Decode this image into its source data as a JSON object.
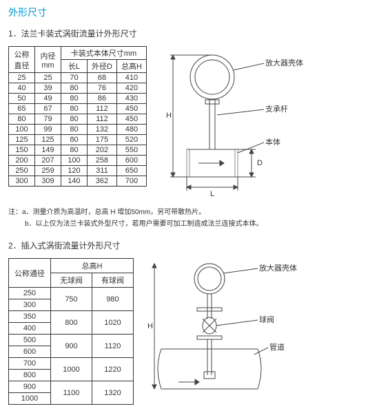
{
  "title_main": "外形尺寸",
  "section1": {
    "title": "1．法兰卡装式涡街流量计外形尺寸",
    "headers": {
      "col1_line1": "公称",
      "col1_line2": "直径",
      "col2_line1": "内径",
      "col2_line2": "mm",
      "group": "卡装式本体尺寸mm",
      "g1": "长L",
      "g2": "外径D",
      "g3": "总高H"
    },
    "rows": [
      [
        "25",
        "25",
        "70",
        "68",
        "410"
      ],
      [
        "40",
        "39",
        "80",
        "76",
        "420"
      ],
      [
        "50",
        "49",
        "80",
        "86",
        "430"
      ],
      [
        "65",
        "67",
        "80",
        "112",
        "450"
      ],
      [
        "80",
        "79",
        "80",
        "112",
        "450"
      ],
      [
        "100",
        "99",
        "80",
        "132",
        "480"
      ],
      [
        "125",
        "125",
        "80",
        "175",
        "520"
      ],
      [
        "150",
        "149",
        "80",
        "202",
        "550"
      ],
      [
        "200",
        "207",
        "100",
        "258",
        "600"
      ],
      [
        "250",
        "259",
        "120",
        "311",
        "650"
      ],
      [
        "300",
        "309",
        "140",
        "362",
        "700"
      ]
    ],
    "note_a": "注：a．测量介质为高温时，总高 H 增加50mm，另可带散热片。",
    "note_b": "b．以上仅为法兰卡装式外型尺寸，若用户需要可加工制造成法兰连接式本体。"
  },
  "section2": {
    "title": "2．插入式涡街流量计外形尺寸",
    "headers": {
      "col1": "公称通径",
      "group": "总高H",
      "g1": "无球阀",
      "g2": "有球阀"
    },
    "rows": [
      {
        "dn": [
          "250",
          "300"
        ],
        "h1": "750",
        "h2": "980"
      },
      {
        "dn": [
          "350",
          "400"
        ],
        "h1": "800",
        "h2": "1020"
      },
      {
        "dn": [
          "500",
          "600"
        ],
        "h1": "900",
        "h2": "1120"
      },
      {
        "dn": [
          "700",
          "800"
        ],
        "h1": "1000",
        "h2": "1220"
      },
      {
        "dn": [
          "900",
          "1000"
        ],
        "h1": "1100",
        "h2": "1320"
      }
    ]
  },
  "diagram1": {
    "label_amp": "放大器壳体",
    "label_rod": "支承杆",
    "label_body": "本体",
    "dim_H": "H",
    "dim_D": "D",
    "dim_L": "L",
    "colors": {
      "stroke": "#444444",
      "fill": "#ffffff",
      "hatch": "#888888"
    }
  },
  "diagram2": {
    "label_amp": "放大器壳体",
    "label_valve": "球阀",
    "label_pipe": "管道",
    "dim_H": "H",
    "colors": {
      "stroke": "#444444",
      "fill": "#ffffff"
    }
  }
}
